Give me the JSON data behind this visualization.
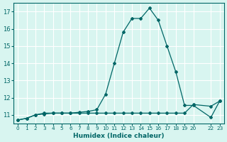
{
  "xlabel": "Humidex (Indice chaleur)",
  "ylabel": "",
  "bg_color": "#d8f5f0",
  "line_color": "#006666",
  "grid_color": "#ffffff",
  "xlim": [
    -0.5,
    23.5
  ],
  "ylim": [
    10.5,
    17.5
  ],
  "yticks": [
    11,
    12,
    13,
    14,
    15,
    16,
    17
  ],
  "xtick_positions": [
    0,
    1,
    2,
    3,
    4,
    5,
    6,
    7,
    8,
    9,
    10,
    11,
    12,
    13,
    14,
    15,
    16,
    17,
    18,
    19,
    20,
    22,
    23
  ],
  "xtick_labels": [
    "0",
    "1",
    "2",
    "3",
    "4",
    "5",
    "6",
    "7",
    "8",
    "9",
    "10",
    "11",
    "12",
    "13",
    "14",
    "15",
    "16",
    "17",
    "18",
    "19",
    "20",
    "22",
    "23"
  ],
  "series1_x": [
    0,
    1,
    2,
    3,
    4,
    5,
    6,
    7,
    8,
    9,
    10,
    11,
    12,
    13,
    14,
    15,
    16,
    17,
    18,
    19,
    20,
    22,
    23
  ],
  "series1_y": [
    10.7,
    10.8,
    11.0,
    11.1,
    11.1,
    11.1,
    11.1,
    11.1,
    11.1,
    11.1,
    11.1,
    11.1,
    11.1,
    11.1,
    11.1,
    11.1,
    11.1,
    11.1,
    11.1,
    11.1,
    11.6,
    11.5,
    11.8
  ],
  "series2_x": [
    0,
    1,
    2,
    3,
    4,
    5,
    6,
    7,
    8,
    9,
    10,
    11,
    12,
    13,
    14,
    15,
    16,
    17,
    18,
    19,
    20,
    22,
    23
  ],
  "series2_y": [
    10.7,
    10.8,
    11.0,
    11.05,
    11.1,
    11.1,
    11.1,
    11.15,
    11.2,
    11.3,
    12.2,
    14.0,
    15.8,
    16.6,
    16.6,
    17.2,
    16.5,
    15.0,
    13.5,
    11.55,
    11.55,
    10.85,
    11.8
  ]
}
